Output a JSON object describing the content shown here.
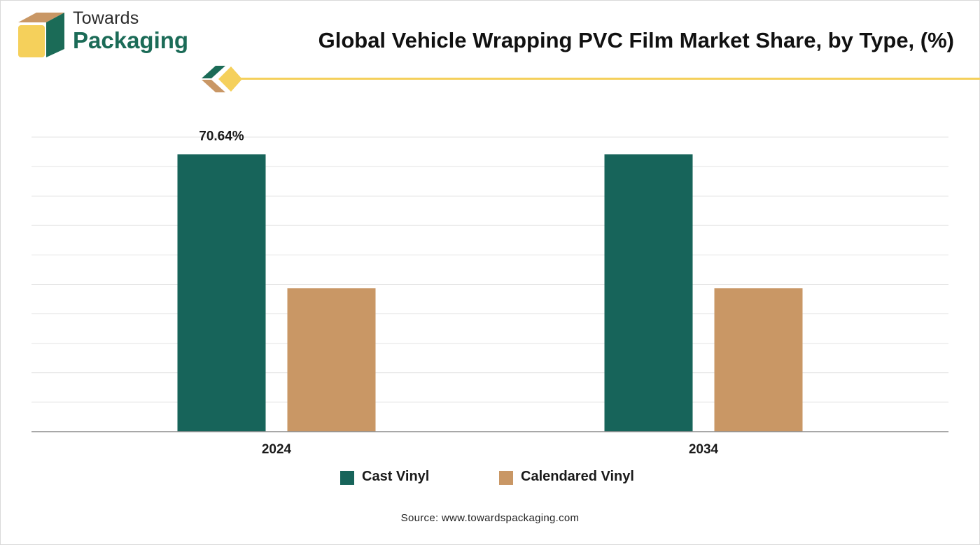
{
  "brand": {
    "line1": "Towards",
    "line2": "Packaging"
  },
  "colors": {
    "cast_vinyl": "#17645a",
    "calendared_vinyl": "#c99765",
    "brand_green": "#1b6b57",
    "brand_yellow": "#f5d05b"
  },
  "chart_data": {
    "type": "bar",
    "title": "Global Vehicle Wrapping PVC Film Market Share, by Type, (%)",
    "categories": [
      "2024",
      "2034"
    ],
    "series": [
      {
        "name": "Cast Vinyl",
        "values": [
          70.64,
          70.64
        ]
      },
      {
        "name": "Calendared Vinyl",
        "values": [
          36.5,
          36.5
        ]
      }
    ],
    "data_labels": [
      "70.64%",
      ""
    ],
    "ylim": [
      0,
      75
    ],
    "grid": true,
    "legend": "bottom",
    "xlabel": "",
    "ylabel": ""
  },
  "source": "Source: www.towardspackaging.com"
}
